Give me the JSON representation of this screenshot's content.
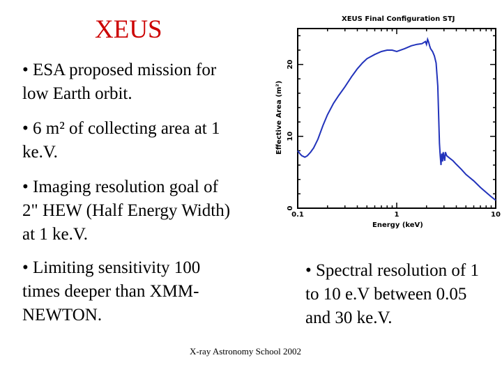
{
  "slide": {
    "title": "XEUS",
    "bullets": [
      "• ESA proposed mission for low Earth orbit.",
      "• 6 m² of collecting area at 1 ke.V.",
      "• Imaging resolution goal of 2\" HEW (Half Energy Width) at 1 ke.V.",
      "• Limiting sensitivity 100 times deeper than XMM-NEWTON.",
      "• Spectral resolution of 1 to 10 e.V between 0.05 and 30 ke.V."
    ],
    "footer": "X-ray Astronomy School 2002"
  },
  "colors": {
    "title": "#cc0000",
    "curve": "#2233bb",
    "axes": "#000000"
  },
  "chart_data": {
    "type": "line",
    "title": "XEUS Final Configuration STJ",
    "xlabel": "Energy (keV)",
    "ylabel": "Effective Area (m²)",
    "x_scale": "log",
    "xlim": [
      0.1,
      10
    ],
    "ylim": [
      0,
      25
    ],
    "xticks": [
      "0.1",
      "1",
      "10"
    ],
    "yticks": [
      "0",
      "10",
      "20"
    ],
    "grid": false,
    "series": [
      {
        "x": [
          0.1,
          0.105,
          0.11,
          0.118,
          0.125,
          0.135,
          0.145,
          0.16,
          0.18,
          0.2,
          0.23,
          0.26,
          0.3,
          0.35,
          0.4,
          0.45,
          0.5,
          0.6,
          0.7,
          0.8,
          0.9,
          1.0,
          1.2,
          1.4,
          1.6,
          1.8,
          1.95,
          2.0,
          2.05,
          2.1,
          2.15,
          2.2,
          2.3,
          2.4,
          2.5,
          2.6,
          2.7,
          2.75,
          2.8,
          2.85,
          2.9,
          2.95,
          3.0,
          3.05,
          3.1,
          3.2,
          3.4,
          3.7,
          4.0,
          4.5,
          5.0,
          6.0,
          7.0,
          8.0,
          9.0,
          10.0
        ],
        "y": [
          8.0,
          7.6,
          7.3,
          7.1,
          7.3,
          7.8,
          8.4,
          9.6,
          11.5,
          13.0,
          14.6,
          15.7,
          16.9,
          18.3,
          19.4,
          20.2,
          20.8,
          21.4,
          21.8,
          22.0,
          22.0,
          21.8,
          22.2,
          22.6,
          22.8,
          22.9,
          23.2,
          22.8,
          23.5,
          23.1,
          22.6,
          22.2,
          21.8,
          21.2,
          20.2,
          17.0,
          9.0,
          7.3,
          6.0,
          7.6,
          6.5,
          7.8,
          7.1,
          6.6,
          7.8,
          7.3,
          7.0,
          6.6,
          6.1,
          5.4,
          4.7,
          3.8,
          2.9,
          2.2,
          1.6,
          1.1
        ]
      }
    ]
  }
}
